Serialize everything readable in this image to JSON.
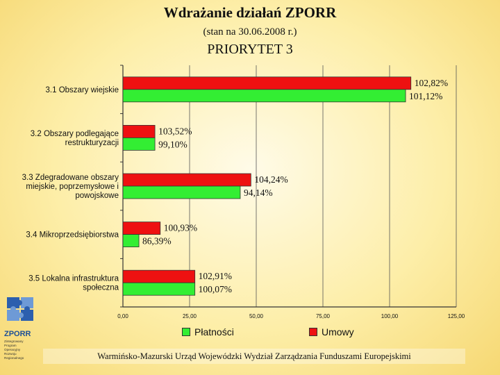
{
  "title": "Wdrażanie działań ZPORR",
  "subtitle": "(stan na 30.06.2008 r.)",
  "priority": "PRIORYTET 3",
  "footer": "Warmińsko-Mazurski Urząd Wojewódzki Wydział Zarządzania Funduszami Europejskimi",
  "logo": {
    "name": "ZPORR",
    "lines": [
      "Zintegrowany",
      "Program",
      "Operacyjny",
      "Rozwoju",
      "Regionalnego"
    ]
  },
  "colors": {
    "platnosci": "#33ee33",
    "umowy": "#ee1111"
  },
  "chart_data": {
    "type": "bar",
    "orientation": "horizontal",
    "categories": [
      "3.1 Obszary wiejskie",
      "3.2 Obszary podlegające restrukturyzacji",
      "3.3 Zdegradowane obszary miejskie, poprzemysłowe i powojskowe",
      "3.4 Mikroprzedsiębiorstwa",
      "3.5 Lokalna infrastruktura społeczna"
    ],
    "category_lines": [
      [
        "3.1 Obszary wiejskie"
      ],
      [
        "3.2 Obszary podlegające",
        "restrukturyzacji"
      ],
      [
        "3.3 Zdegradowane obszary",
        "miejskie, poprzemysłowe i",
        "powojskowe"
      ],
      [
        "3.4 Mikroprzedsiębiorstwa"
      ],
      [
        "3.5 Lokalna infrastruktura",
        "społeczna"
      ]
    ],
    "series": [
      {
        "name": "Umowy",
        "values": [
          108,
          12,
          48,
          14,
          27
        ],
        "labels": [
          "102,82%",
          "103,52%",
          "104,24%",
          "100,93%",
          "102,91%"
        ]
      },
      {
        "name": "Płatności",
        "values": [
          106,
          12,
          44,
          6,
          27
        ],
        "labels": [
          "101,12%",
          "99,10%",
          "94,14%",
          "86,39%",
          "100,07%"
        ]
      }
    ],
    "xlim": [
      0,
      125
    ],
    "xticks": [
      "0,00",
      "25,00",
      "50,00",
      "75,00",
      "100,00",
      "125,00"
    ],
    "grid": "vertical",
    "legend_position": "bottom"
  }
}
